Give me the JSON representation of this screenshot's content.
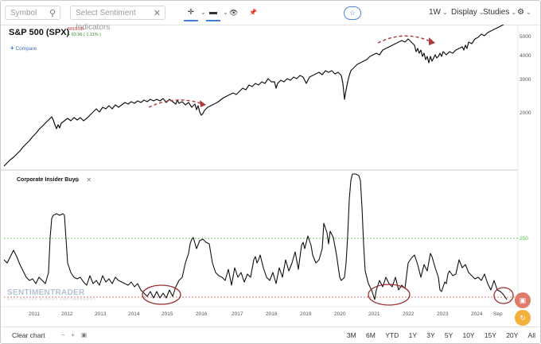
{
  "toolbar": {
    "symbol_placeholder": "Symbol",
    "indicator_placeholder": "Select Sentiment Indicators",
    "interval": "1W",
    "display": "Display",
    "studies": "Studies",
    "star": "☆",
    "crosshair_icon": "✛",
    "bars_icon": "▬",
    "eye_icon": "👁",
    "pin_icon": "📌",
    "gear_icon": "⚙"
  },
  "main_chart": {
    "title": "S&P 500 (SPX)",
    "price": "5815.03",
    "change": "+ 63.96 ( 1.11% )",
    "compare_label": "Compare",
    "y_ticks": [
      "5000",
      "4000",
      "3000",
      "2000"
    ],
    "line_color": "#111111",
    "arrow_color": "#b03a3a"
  },
  "indicator": {
    "title": "Corporate Insider Buys",
    "gear_icon": "⚙",
    "close_icon": "✕",
    "level_label": "250",
    "green_level_color": "#3fbf3f",
    "red_level_color": "#e04848"
  },
  "x_axis": {
    "labels": [
      "2011",
      "2012",
      "2013",
      "2014",
      "2015",
      "2016",
      "2017",
      "2018",
      "2019",
      "2020",
      "2021",
      "2022",
      "2023",
      "2024",
      "Sep"
    ]
  },
  "footer": {
    "clear_chart": "Clear chart",
    "ranges": [
      "3M",
      "6M",
      "YTD",
      "1Y",
      "3Y",
      "5Y",
      "10Y",
      "15Y",
      "20Y",
      "All"
    ]
  },
  "watermark": {
    "name": "SENTIMENTRADER",
    "tagline": "DATA-DRIVEN MARKET EMPOWERMENT"
  },
  "fab": {
    "top_icon": "▣",
    "bottom_icon": "↻",
    "top_color": "#e07b6a",
    "bottom_color": "#f3b03a"
  }
}
